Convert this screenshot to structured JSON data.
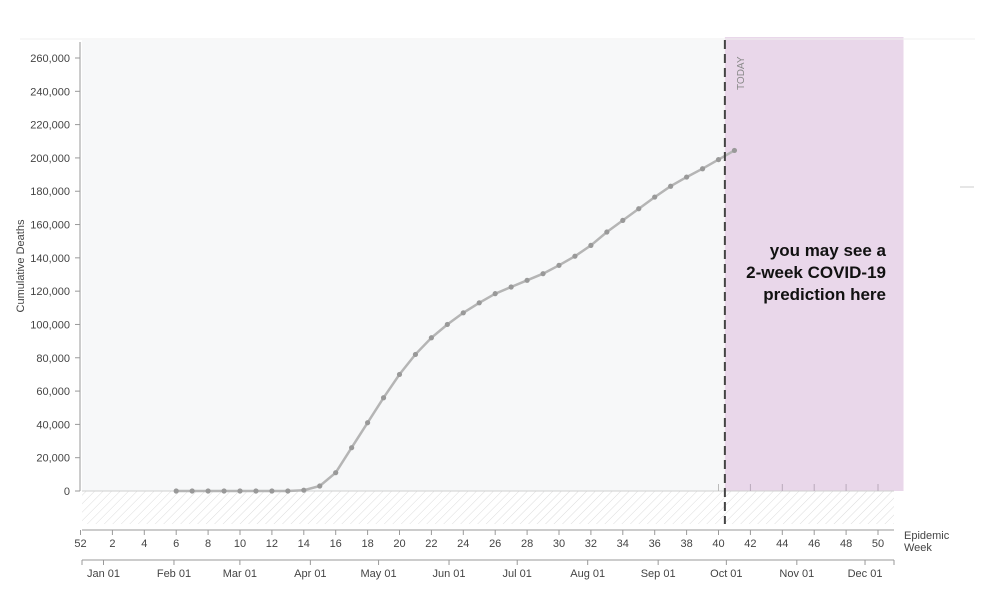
{
  "chart_data": {
    "type": "line",
    "ylabel": "Cumulative Deaths",
    "ylim": [
      0,
      270000
    ],
    "yticks": [
      0,
      20000,
      40000,
      60000,
      80000,
      100000,
      120000,
      140000,
      160000,
      180000,
      200000,
      220000,
      240000,
      260000
    ],
    "ytick_labels": [
      "0",
      "20,000",
      "40,000",
      "60,000",
      "80,000",
      "100,000",
      "120,000",
      "140,000",
      "160,000",
      "180,000",
      "200,000",
      "220,000",
      "240,000",
      "260,000"
    ],
    "epiweek_axis_label": "Epidemic Week",
    "epiweek_ticks": [
      "52",
      "2",
      "4",
      "6",
      "8",
      "10",
      "12",
      "14",
      "16",
      "18",
      "20",
      "22",
      "24",
      "26",
      "28",
      "30",
      "32",
      "34",
      "36",
      "38",
      "40",
      "42",
      "44",
      "46",
      "48",
      "50"
    ],
    "month_ticks": [
      "Jan 01",
      "Feb 01",
      "Mar 01",
      "Apr 01",
      "May 01",
      "Jun 01",
      "Jul 01",
      "Aug 01",
      "Sep 01",
      "Oct 01",
      "Nov 01",
      "Dec 01"
    ],
    "today_label": "TODAY",
    "today_epiweek": 40.4,
    "prediction_region_epiweeks": [
      40.4,
      51.6
    ],
    "prediction_text": [
      "you may see a",
      "2-week COVID-19",
      "prediction here"
    ],
    "grid": false,
    "series": [
      {
        "x": [
          5,
          6,
          7,
          8,
          9,
          10,
          11,
          12,
          13,
          14,
          15,
          16,
          17,
          18,
          19,
          20,
          21,
          22,
          23,
          24,
          25,
          26,
          27,
          28,
          29,
          30,
          31,
          32,
          33,
          34,
          35,
          36,
          37,
          38,
          39,
          40
        ],
        "values": [
          0,
          0,
          0,
          0,
          0,
          0,
          0,
          0,
          500,
          3000,
          11000,
          26000,
          41000,
          56000,
          70000,
          82000,
          92000,
          100000,
          107000,
          113000,
          118500,
          122500,
          126500,
          130500,
          135500,
          141000,
          147500,
          155500,
          162500,
          169500,
          176500,
          183000,
          188500,
          193500,
          199000,
          204500
        ]
      }
    ],
    "colors": {
      "line": "#b5b5b5",
      "marker": "#999999",
      "prediction_fill": "#e9d7ea",
      "plot_bg": "#f7f8f9",
      "today_line": "#444444"
    }
  }
}
